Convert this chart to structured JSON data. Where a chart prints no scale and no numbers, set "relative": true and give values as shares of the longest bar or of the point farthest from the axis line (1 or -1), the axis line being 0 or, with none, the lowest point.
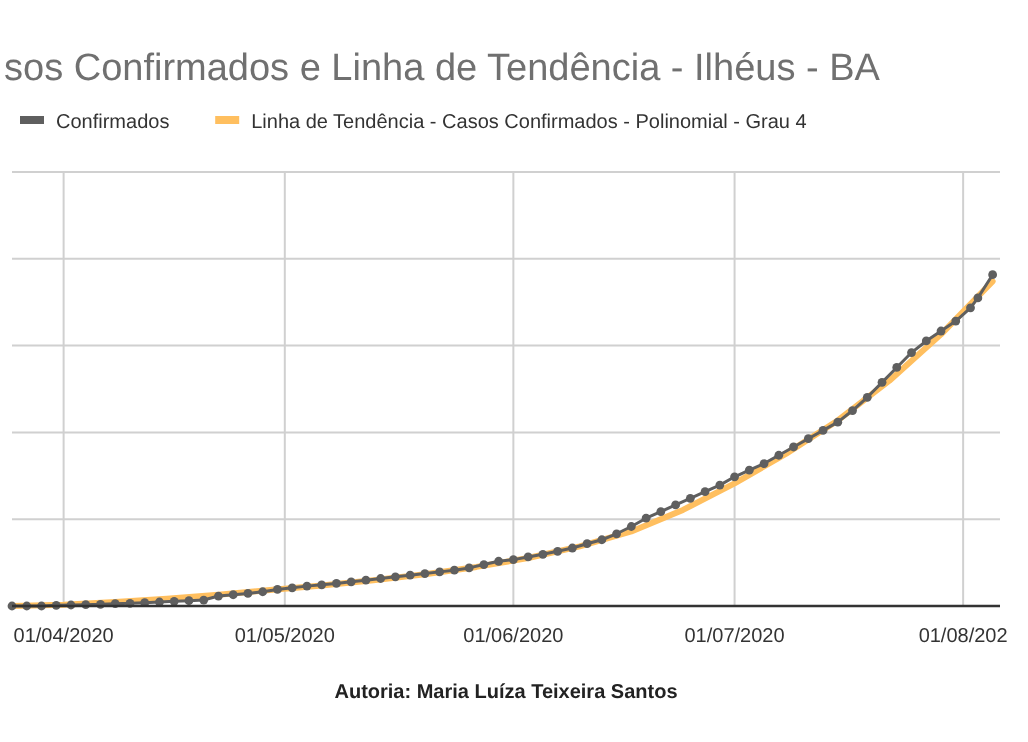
{
  "chart_data": {
    "type": "line",
    "title": "sos Confirmados e Linha de Tendência - Ilhéus - BA",
    "relative": true,
    "grid": true,
    "legend": "top",
    "marker": "circle",
    "line_style": "solid",
    "xlim": [
      "2020-03-25",
      "2020-08-06"
    ],
    "xticks": [
      {
        "value": "2020-04-01",
        "label": "01/04/2020"
      },
      {
        "value": "2020-05-01",
        "label": "01/05/2020"
      },
      {
        "value": "2020-06-01",
        "label": "01/06/2020"
      },
      {
        "value": "2020-07-01",
        "label": "01/07/2020"
      },
      {
        "value": "2020-08-01",
        "label": "01/08/202"
      }
    ],
    "annotations": [
      "Autoria: Maria Luíza Teixeira Santos"
    ],
    "series": [
      {
        "name": "Confirmados",
        "color": "#5f5f5f",
        "x": [
          "2020-03-25",
          "2020-03-27",
          "2020-03-29",
          "2020-03-31",
          "2020-04-02",
          "2020-04-04",
          "2020-04-06",
          "2020-04-08",
          "2020-04-10",
          "2020-04-12",
          "2020-04-14",
          "2020-04-16",
          "2020-04-18",
          "2020-04-20",
          "2020-04-22",
          "2020-04-24",
          "2020-04-26",
          "2020-04-28",
          "2020-04-30",
          "2020-05-02",
          "2020-05-04",
          "2020-05-06",
          "2020-05-08",
          "2020-05-10",
          "2020-05-12",
          "2020-05-14",
          "2020-05-16",
          "2020-05-18",
          "2020-05-20",
          "2020-05-22",
          "2020-05-24",
          "2020-05-26",
          "2020-05-28",
          "2020-05-30",
          "2020-06-01",
          "2020-06-03",
          "2020-06-05",
          "2020-06-07",
          "2020-06-09",
          "2020-06-11",
          "2020-06-13",
          "2020-06-15",
          "2020-06-17",
          "2020-06-19",
          "2020-06-21",
          "2020-06-23",
          "2020-06-25",
          "2020-06-27",
          "2020-06-29",
          "2020-07-01",
          "2020-07-03",
          "2020-07-05",
          "2020-07-07",
          "2020-07-09",
          "2020-07-11",
          "2020-07-13",
          "2020-07-15",
          "2020-07-17",
          "2020-07-19",
          "2020-07-21",
          "2020-07-23",
          "2020-07-25",
          "2020-07-27",
          "2020-07-29",
          "2020-07-31",
          "2020-08-02",
          "2020-08-03",
          "2020-08-05"
        ],
        "values": [
          0,
          0,
          0,
          0.002,
          0.003,
          0.004,
          0.005,
          0.007,
          0.008,
          0.01,
          0.012,
          0.014,
          0.016,
          0.018,
          0.03,
          0.034,
          0.038,
          0.043,
          0.05,
          0.055,
          0.06,
          0.064,
          0.068,
          0.073,
          0.078,
          0.083,
          0.088,
          0.093,
          0.098,
          0.103,
          0.108,
          0.115,
          0.125,
          0.135,
          0.14,
          0.148,
          0.156,
          0.165,
          0.175,
          0.188,
          0.2,
          0.218,
          0.24,
          0.265,
          0.285,
          0.305,
          0.325,
          0.345,
          0.365,
          0.39,
          0.41,
          0.43,
          0.455,
          0.48,
          0.505,
          0.53,
          0.555,
          0.59,
          0.63,
          0.675,
          0.72,
          0.765,
          0.8,
          0.83,
          0.86,
          0.9,
          0.93,
          1.0
        ]
      },
      {
        "name": "Linha de Tendência - Casos Confirmados - Polinomial -  Grau 4",
        "color": "#ffbf5f",
        "marker": "none",
        "x": [
          "2020-03-25",
          "2020-04-01",
          "2020-04-08",
          "2020-04-15",
          "2020-04-22",
          "2020-04-29",
          "2020-05-06",
          "2020-05-13",
          "2020-05-20",
          "2020-05-27",
          "2020-06-03",
          "2020-06-10",
          "2020-06-17",
          "2020-06-24",
          "2020-07-01",
          "2020-07-08",
          "2020-07-15",
          "2020-07-22",
          "2020-07-29",
          "2020-08-05"
        ],
        "values": [
          0,
          0.004,
          0.012,
          0.022,
          0.034,
          0.048,
          0.062,
          0.078,
          0.096,
          0.118,
          0.145,
          0.18,
          0.225,
          0.29,
          0.37,
          0.46,
          0.56,
          0.68,
          0.82,
          0.98
        ]
      }
    ]
  }
}
